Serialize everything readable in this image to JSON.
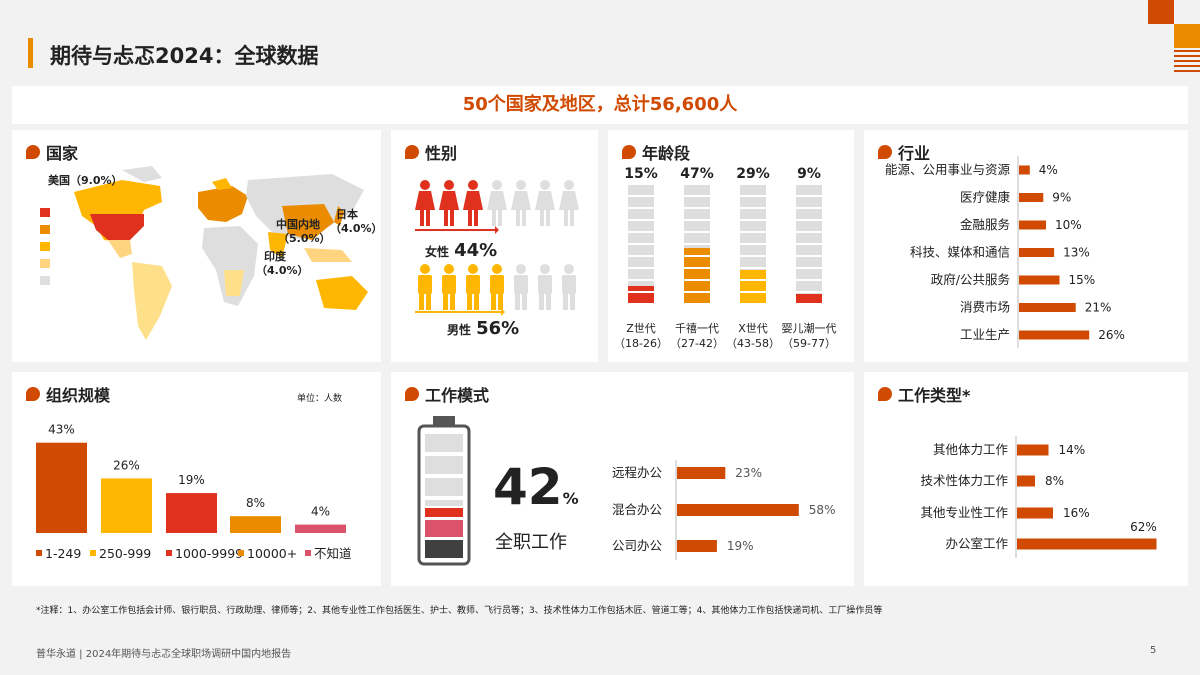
{
  "page": {
    "title": "期待与忐忑2024：全球数据",
    "banner": "50个国家及地区，总计56,600人",
    "note": "*注释：1、办公室工作包括会计师、银行职员、行政助理、律师等；2、其他专业性工作包括医生、护士、教师、飞行员等；3、技术性体力工作包括木匠、管道工等；4、其他体力工作包括快递司机、工厂操作员等",
    "footer": "普华永道 | 2024年期待与忐忑全球职场调研中国内地报告",
    "page_number": "5"
  },
  "colors": {
    "orange": "#d04a02",
    "amber": "#ffb600",
    "red": "#e0301e",
    "tangerine": "#eb8c00",
    "rose": "#db536a",
    "grey": "#dedede"
  },
  "country": {
    "title": "国家",
    "labels": {
      "us": "美国（9.0%）",
      "cn1": "中国内地",
      "cn2": "（5.0%）",
      "jp1": "日本",
      "jp2": "（4.0%）",
      "in1": "印度",
      "in2": "（4.0%）"
    }
  },
  "gender": {
    "title": "性别",
    "female_label": "女性",
    "female_value": "44%",
    "male_label": "男性",
    "male_value": "56%"
  },
  "age": {
    "title": "年龄段",
    "groups": [
      {
        "pct": "15%",
        "label1": "Z世代",
        "label2": "（18-26）"
      },
      {
        "pct": "47%",
        "label1": "千禧一代",
        "label2": "（27-42）"
      },
      {
        "pct": "29%",
        "label1": "X世代",
        "label2": "（43-58）"
      },
      {
        "pct": "9%",
        "label1": "婴儿潮一代",
        "label2": "（59-77）"
      }
    ]
  },
  "industry": {
    "title": "行业"
  },
  "org": {
    "title": "组织规模",
    "unit": "单位：人数"
  },
  "workmode": {
    "title": "工作模式",
    "big_value": "42",
    "big_unit": "%",
    "big_label": "全职工作"
  },
  "worktype": {
    "title": "工作类型*"
  },
  "chart_data": [
    {
      "type": "bar",
      "title": "年龄段",
      "categories": [
        "Z世代（18-26）",
        "千禧一代（27-42）",
        "X世代（43-58）",
        "婴儿潮一代（59-77）"
      ],
      "values": [
        15,
        47,
        29,
        9
      ],
      "colors": [
        "#e0301e",
        "#eb8c00",
        "#ffb600",
        "#e0301e"
      ],
      "ylim": [
        0,
        100
      ]
    },
    {
      "type": "bar",
      "orientation": "horizontal",
      "title": "行业",
      "categories": [
        "能源、公用事业与资源",
        "医疗健康",
        "金融服务",
        "科技、媒体和通信",
        "政府/公共服务",
        "消费市场",
        "工业生产"
      ],
      "values": [
        4,
        9,
        10,
        13,
        15,
        21,
        26
      ],
      "value_labels": [
        "4%",
        "9%",
        "10%",
        "13%",
        "15%",
        "21%",
        "26%"
      ],
      "color": "#d04a02"
    },
    {
      "type": "bar",
      "title": "组织规模",
      "categories": [
        "1-249",
        "250-999",
        "1000-9999",
        "10000+",
        "不知道"
      ],
      "values": [
        43,
        26,
        19,
        8,
        4
      ],
      "value_labels": [
        "43%",
        "26%",
        "19%",
        "8%",
        "4%"
      ],
      "colors": [
        "#d04a02",
        "#ffb600",
        "#e0301e",
        "#eb8c00",
        "#db536a"
      ]
    },
    {
      "type": "bar",
      "orientation": "horizontal",
      "title": "工作模式",
      "categories": [
        "远程办公",
        "混合办公",
        "公司办公"
      ],
      "values": [
        23,
        58,
        19
      ],
      "value_labels": [
        "23%",
        "58%",
        "19%"
      ],
      "color": "#d04a02"
    },
    {
      "type": "bar",
      "orientation": "horizontal",
      "title": "工作类型*",
      "categories": [
        "其他体力工作",
        "技术性体力工作",
        "其他专业性工作",
        "办公室工作"
      ],
      "values": [
        14,
        8,
        16,
        62
      ],
      "value_labels": [
        "14%",
        "8%",
        "16%",
        "62%"
      ],
      "color": "#d04a02"
    }
  ]
}
